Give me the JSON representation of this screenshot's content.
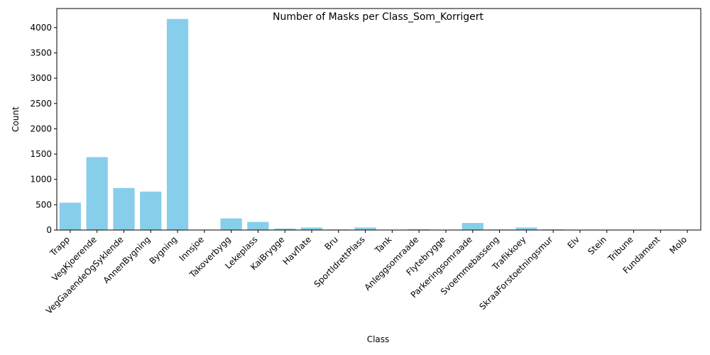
{
  "chart_data": {
    "type": "bar",
    "title": "Number of Masks per Class_Som_Korrigert",
    "xlabel": "Class",
    "ylabel": "Count",
    "ylim": [
      0,
      4376
    ],
    "yticks": [
      0,
      500,
      1000,
      1500,
      2000,
      2500,
      3000,
      3500,
      4000
    ],
    "bar_color": "#87ceeb",
    "grid": false,
    "categories": [
      "Trapp",
      "VegKjoerende",
      "VegGaaendeOgSyklende",
      "AnnenBygning",
      "Bygning",
      "Innsjoe",
      "Takoverbygg",
      "Lekeplass",
      "KaiBrygge",
      "Havflate",
      "Bru",
      "SportIdrettPlass",
      "Tank",
      "Anleggsomraade",
      "Flytebrygge",
      "Parkeringsomraade",
      "Svoemmebasseng",
      "Trafikkoey",
      "SkraaForstoetningsmur",
      "Elv",
      "Stein",
      "Tribune",
      "Fundament",
      "Molo"
    ],
    "values": [
      540,
      1440,
      830,
      760,
      4170,
      8,
      230,
      160,
      30,
      50,
      10,
      50,
      3,
      15,
      2,
      140,
      10,
      50,
      12,
      3,
      1,
      1,
      1,
      1
    ]
  }
}
